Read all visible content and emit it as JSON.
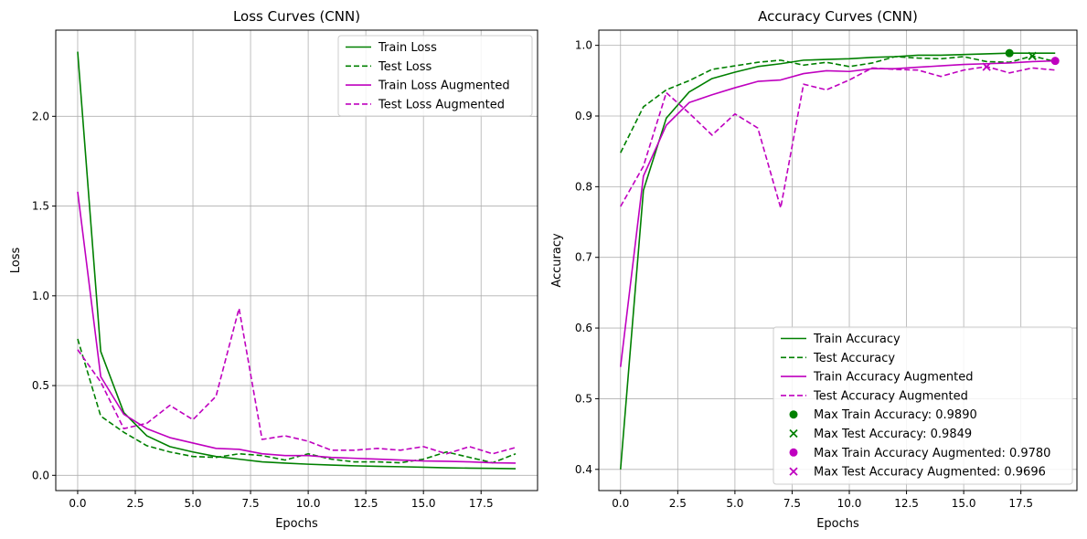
{
  "chart_data": [
    {
      "type": "line",
      "title": "Loss Curves (CNN)",
      "xlabel": "Epochs",
      "ylabel": "Loss",
      "xlim": [
        -0.95,
        19.95
      ],
      "ylim": [
        -0.085,
        2.48
      ],
      "xticks": [
        0,
        2.5,
        5,
        7.5,
        10,
        12.5,
        15,
        17.5
      ],
      "xtick_labels": [
        "0.0",
        "2.5",
        "5.0",
        "7.5",
        "10.0",
        "12.5",
        "15.0",
        "17.5"
      ],
      "yticks": [
        0,
        0.5,
        1.0,
        1.5,
        2.0
      ],
      "ytick_labels": [
        "0.0",
        "0.5",
        "1.0",
        "1.5",
        "2.0"
      ],
      "grid": true,
      "legend": "upper right",
      "x": [
        0,
        1,
        2,
        3,
        4,
        5,
        6,
        7,
        8,
        9,
        10,
        11,
        12,
        13,
        14,
        15,
        16,
        17,
        18,
        19
      ],
      "series": [
        {
          "name": "Train Loss",
          "color": "#008000",
          "dash": "solid",
          "values": [
            2.36,
            0.69,
            0.35,
            0.22,
            0.16,
            0.13,
            0.105,
            0.09,
            0.075,
            0.068,
            0.062,
            0.057,
            0.053,
            0.05,
            0.048,
            0.045,
            0.042,
            0.04,
            0.039,
            0.037
          ]
        },
        {
          "name": "Test Loss",
          "color": "#008000",
          "dash": "dashed",
          "values": [
            0.76,
            0.33,
            0.24,
            0.165,
            0.13,
            0.105,
            0.1,
            0.12,
            0.11,
            0.085,
            0.12,
            0.09,
            0.075,
            0.075,
            0.07,
            0.09,
            0.13,
            0.1,
            0.07,
            0.12
          ]
        },
        {
          "name": "Train Loss Augmented",
          "color": "#bf00bf",
          "dash": "solid",
          "values": [
            1.58,
            0.55,
            0.34,
            0.26,
            0.21,
            0.18,
            0.15,
            0.145,
            0.12,
            0.11,
            0.11,
            0.1,
            0.095,
            0.09,
            0.085,
            0.08,
            0.078,
            0.075,
            0.07,
            0.068
          ]
        },
        {
          "name": "Test Loss Augmented",
          "color": "#bf00bf",
          "dash": "dashed",
          "values": [
            0.7,
            0.52,
            0.26,
            0.29,
            0.39,
            0.31,
            0.44,
            0.93,
            0.2,
            0.22,
            0.19,
            0.14,
            0.14,
            0.15,
            0.14,
            0.16,
            0.12,
            0.16,
            0.12,
            0.155
          ]
        }
      ]
    },
    {
      "type": "line",
      "title": "Accuracy Curves (CNN)",
      "xlabel": "Epochs",
      "ylabel": "Accuracy",
      "xlim": [
        -0.95,
        19.95
      ],
      "ylim": [
        0.37,
        1.0215
      ],
      "xticks": [
        0,
        2.5,
        5,
        7.5,
        10,
        12.5,
        15,
        17.5
      ],
      "xtick_labels": [
        "0.0",
        "2.5",
        "5.0",
        "7.5",
        "10.0",
        "12.5",
        "15.0",
        "17.5"
      ],
      "yticks": [
        0.4,
        0.5,
        0.6,
        0.7,
        0.8,
        0.9,
        1.0
      ],
      "ytick_labels": [
        "0.4",
        "0.5",
        "0.6",
        "0.7",
        "0.8",
        "0.9",
        "1.0"
      ],
      "grid": true,
      "legend": "lower right",
      "x": [
        0,
        1,
        2,
        3,
        4,
        5,
        6,
        7,
        8,
        9,
        10,
        11,
        12,
        13,
        14,
        15,
        16,
        17,
        18,
        19
      ],
      "series": [
        {
          "name": "Train Accuracy",
          "color": "#008000",
          "dash": "solid",
          "values": [
            0.4,
            0.795,
            0.897,
            0.934,
            0.953,
            0.962,
            0.97,
            0.974,
            0.979,
            0.98,
            0.981,
            0.983,
            0.984,
            0.986,
            0.986,
            0.987,
            0.988,
            0.989,
            0.989,
            0.989
          ]
        },
        {
          "name": "Test Accuracy",
          "color": "#008000",
          "dash": "dashed",
          "values": [
            0.848,
            0.913,
            0.937,
            0.95,
            0.966,
            0.971,
            0.976,
            0.979,
            0.972,
            0.976,
            0.97,
            0.975,
            0.984,
            0.982,
            0.981,
            0.984,
            0.977,
            0.976,
            0.985,
            0.977
          ]
        },
        {
          "name": "Train Accuracy Augmented",
          "color": "#bf00bf",
          "dash": "solid",
          "values": [
            0.545,
            0.815,
            0.887,
            0.919,
            0.93,
            0.94,
            0.949,
            0.951,
            0.96,
            0.964,
            0.963,
            0.967,
            0.967,
            0.969,
            0.971,
            0.973,
            0.974,
            0.975,
            0.977,
            0.978
          ]
        },
        {
          "name": "Test Accuracy Augmented",
          "color": "#bf00bf",
          "dash": "dashed",
          "values": [
            0.772,
            0.829,
            0.933,
            0.904,
            0.873,
            0.903,
            0.883,
            0.77,
            0.945,
            0.937,
            0.951,
            0.968,
            0.966,
            0.965,
            0.956,
            0.965,
            0.97,
            0.961,
            0.968,
            0.965
          ]
        }
      ],
      "markers": [
        {
          "name": "Max Train Accuracy: 0.9890",
          "color": "#008000",
          "shape": "circle",
          "x": 17,
          "y": 0.989
        },
        {
          "name": "Max Test Accuracy: 0.9849",
          "color": "#008000",
          "shape": "x",
          "x": 18,
          "y": 0.9849
        },
        {
          "name": "Max Train Accuracy Augmented: 0.9780",
          "color": "#bf00bf",
          "shape": "circle",
          "x": 19,
          "y": 0.978
        },
        {
          "name": "Max Test Accuracy Augmented: 0.9696",
          "color": "#bf00bf",
          "shape": "x",
          "x": 16,
          "y": 0.9696
        }
      ]
    }
  ]
}
